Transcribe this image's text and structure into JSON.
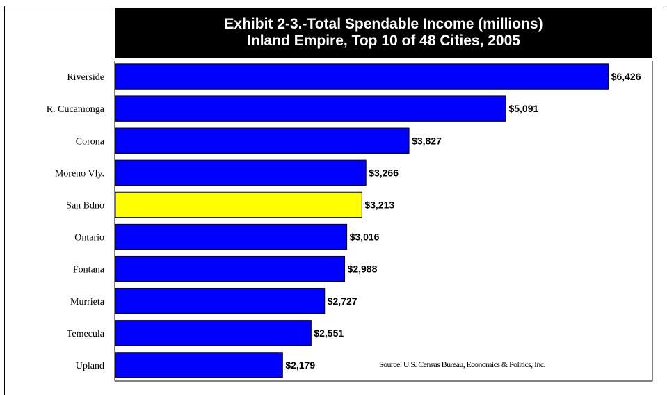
{
  "chart_data": {
    "type": "bar",
    "orientation": "horizontal",
    "title": "Exhibit 2-3.-Total Spendable Income (millions)",
    "subtitle": "Inland Empire, Top 10 of 48 Cities, 2005",
    "categories": [
      "Riverside",
      "R. Cucamonga",
      "Corona",
      "Moreno Vly.",
      "San Bdno",
      "Ontario",
      "Fontana",
      "Murrieta",
      "Temecula",
      "Upland"
    ],
    "values": [
      6426,
      5091,
      3827,
      3266,
      3213,
      3016,
      2988,
      2727,
      2551,
      2179
    ],
    "value_labels": [
      "$6,426",
      "$5,091",
      "$3,827",
      "$3,266",
      "$3,213",
      "$3,016",
      "$2,988",
      "$2,727",
      "$2,551",
      "$2,179"
    ],
    "highlight_category": "San Bdno",
    "xlim": [
      0,
      7000
    ],
    "grid": false,
    "colors": {
      "bar": "#0000ff",
      "highlight": "#ffff00",
      "bar_stroke": "#000000",
      "title_bg": "#000000",
      "title_text": "#ffffff"
    },
    "source": "Source: U.S. Census Bureau, Economics & Politics, Inc."
  }
}
